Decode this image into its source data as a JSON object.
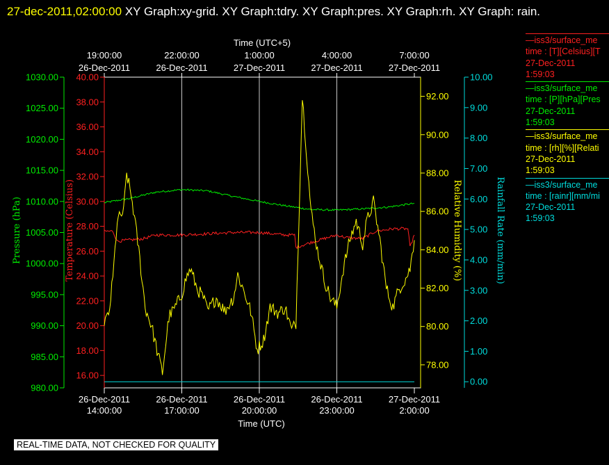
{
  "header": {
    "timestamp": "27-dec-2011,02:00:00",
    "graphs": "XY Graph:xy-grid.  XY Graph:tdry.  XY Graph:pres.  XY Graph:rh.  XY Graph: rain."
  },
  "legend": [
    {
      "line1": "—iss3/surface_me",
      "line2": "time : [T][Celsius][T",
      "line3": "27-Dec-2011",
      "line4": "1:59:03",
      "color": "#ff2020"
    },
    {
      "line1": "—iss3/surface_me",
      "line2": "time : [P][hPa][Pres",
      "line3": "27-Dec-2011",
      "line4": "1:59:03",
      "color": "#00ee00"
    },
    {
      "line1": "—iss3/surface_me",
      "line2": "time : [rh][%][Relati",
      "line3": "27-Dec-2011",
      "line4": "1:59:03",
      "color": "#ffff00"
    },
    {
      "line1": "—iss3/surface_me",
      "line2": "time : [rainr][mm/mi",
      "line3": "27-Dec-2011",
      "line4": "1:59:03",
      "color": "#00dddd"
    }
  ],
  "banner": "REAL-TIME DATA, NOT CHECKED FOR QUALITY",
  "chart_data": {
    "type": "line",
    "top_axis": {
      "title": "Time (UTC+5)",
      "ticks": [
        {
          "time": "19:00:00",
          "date": "26-Dec-2011"
        },
        {
          "time": "22:00:00",
          "date": "26-Dec-2011"
        },
        {
          "time": "1:00:00",
          "date": "27-Dec-2011"
        },
        {
          "time": "4:00:00",
          "date": "27-Dec-2011"
        },
        {
          "time": "7:00:00",
          "date": "27-Dec-2011"
        }
      ]
    },
    "bottom_axis": {
      "title": "Time (UTC)",
      "range": [
        "2011-12-26 14:00",
        "2011-12-27 02:00"
      ],
      "ticks": [
        {
          "date": "26-Dec-2011",
          "time": "14:00:00"
        },
        {
          "date": "26-Dec-2011",
          "time": "17:00:00"
        },
        {
          "date": "26-Dec-2011",
          "time": "20:00:00"
        },
        {
          "date": "26-Dec-2011",
          "time": "23:00:00"
        },
        {
          "date": "27-Dec-2011",
          "time": "2:00:00"
        }
      ]
    },
    "grid": "vertical",
    "axes": {
      "pressure": {
        "label": "Pressure (hPa)",
        "color": "#00ee00",
        "min": 980,
        "max": 1030,
        "ticks": [
          "1030.00",
          "1025.00",
          "1020.00",
          "1015.00",
          "1010.00",
          "1005.00",
          "1000.00",
          "995.00",
          "990.00",
          "985.00",
          "980.00"
        ]
      },
      "temperature": {
        "label": "Temperature (Celsius)",
        "color": "#ff2020",
        "min": 15,
        "max": 40,
        "ticks": [
          "40.00",
          "38.00",
          "36.00",
          "34.00",
          "32.00",
          "30.00",
          "28.00",
          "26.00",
          "24.00",
          "22.00",
          "20.00",
          "18.00",
          "16.00"
        ]
      },
      "humidity": {
        "label": "Relative Humidity (%)",
        "color": "#ffff00",
        "min": 76.8,
        "max": 93.0,
        "ticks": [
          "92.00",
          "90.00",
          "88.00",
          "86.00",
          "84.00",
          "82.00",
          "80.00",
          "78.00"
        ]
      },
      "rain": {
        "label": "Rainfall Rate (mm/min)",
        "color": "#00dddd",
        "min": -0.2,
        "max": 10,
        "ticks": [
          "10.00",
          "9.00",
          "8.00",
          "7.00",
          "6.00",
          "5.00",
          "4.00",
          "3.00",
          "2.00",
          "1.00",
          "0.00"
        ]
      }
    },
    "series": [
      {
        "name": "Pressure",
        "axis": "pressure",
        "color": "#00ee00",
        "noise": 0.15,
        "points": [
          [
            "2011-12-26 14:00",
            1009.8
          ],
          [
            "2011-12-26 15:00",
            1010.5
          ],
          [
            "2011-12-26 16:00",
            1011.5
          ],
          [
            "2011-12-26 17:00",
            1011.9
          ],
          [
            "2011-12-26 18:00",
            1011.7
          ],
          [
            "2011-12-26 19:00",
            1010.8
          ],
          [
            "2011-12-26 20:00",
            1010.0
          ],
          [
            "2011-12-26 21:00",
            1009.3
          ],
          [
            "2011-12-26 22:00",
            1008.7
          ],
          [
            "2011-12-26 23:00",
            1008.6
          ],
          [
            "2011-12-27 00:00",
            1008.8
          ],
          [
            "2011-12-27 01:00",
            1009.1
          ],
          [
            "2011-12-27 02:00",
            1009.7
          ]
        ]
      },
      {
        "name": "Temperature",
        "axis": "temperature",
        "color": "#ff2020",
        "noise": 0.12,
        "points": [
          [
            "2011-12-26 14:00",
            27.6
          ],
          [
            "2011-12-26 14:20",
            27.6
          ],
          [
            "2011-12-26 14:30",
            26.8
          ],
          [
            "2011-12-26 15:30",
            27.0
          ],
          [
            "2011-12-26 16:00",
            27.3
          ],
          [
            "2011-12-26 17:00",
            27.3
          ],
          [
            "2011-12-26 18:00",
            27.4
          ],
          [
            "2011-12-26 19:00",
            27.5
          ],
          [
            "2011-12-26 20:00",
            27.5
          ],
          [
            "2011-12-26 21:00",
            27.3
          ],
          [
            "2011-12-26 21:22",
            27.3
          ],
          [
            "2011-12-26 21:25",
            26.3
          ],
          [
            "2011-12-26 22:00",
            26.7
          ],
          [
            "2011-12-26 23:00",
            27.3
          ],
          [
            "2011-12-26 23:20",
            27.1
          ],
          [
            "2011-12-27 00:00",
            27.0
          ],
          [
            "2011-12-27 00:30",
            27.6
          ],
          [
            "2011-12-27 01:10",
            27.8
          ],
          [
            "2011-12-27 01:45",
            27.8
          ],
          [
            "2011-12-27 01:50",
            26.3
          ],
          [
            "2011-12-27 02:00",
            27.3
          ]
        ]
      },
      {
        "name": "Relative Humidity",
        "axis": "humidity",
        "color": "#ffff00",
        "noise": 0.35,
        "points": [
          [
            "2011-12-26 14:00",
            80.3
          ],
          [
            "2011-12-26 14:10",
            80.5
          ],
          [
            "2011-12-26 14:20",
            82.5
          ],
          [
            "2011-12-26 14:30",
            85.5
          ],
          [
            "2011-12-26 14:45",
            86.0
          ],
          [
            "2011-12-26 14:52",
            88.0
          ],
          [
            "2011-12-26 15:05",
            86.5
          ],
          [
            "2011-12-26 15:20",
            84.0
          ],
          [
            "2011-12-26 15:35",
            81.0
          ],
          [
            "2011-12-26 15:50",
            80.0
          ],
          [
            "2011-12-26 16:05",
            78.5
          ],
          [
            "2011-12-26 16:15",
            77.6
          ],
          [
            "2011-12-26 16:30",
            80.5
          ],
          [
            "2011-12-26 16:45",
            81.0
          ],
          [
            "2011-12-26 17:00",
            81.7
          ],
          [
            "2011-12-26 17:10",
            82.5
          ],
          [
            "2011-12-26 17:20",
            83.0
          ],
          [
            "2011-12-26 17:35",
            82.0
          ],
          [
            "2011-12-26 17:50",
            81.5
          ],
          [
            "2011-12-26 18:00",
            80.8
          ],
          [
            "2011-12-26 18:20",
            81.5
          ],
          [
            "2011-12-26 18:40",
            80.8
          ],
          [
            "2011-12-26 19:00",
            81.5
          ],
          [
            "2011-12-26 19:10",
            82.7
          ],
          [
            "2011-12-26 19:25",
            81.8
          ],
          [
            "2011-12-26 19:40",
            80.8
          ],
          [
            "2011-12-26 19:55",
            78.8
          ],
          [
            "2011-12-26 20:10",
            79.3
          ],
          [
            "2011-12-26 20:25",
            81.0
          ],
          [
            "2011-12-26 20:45",
            80.7
          ],
          [
            "2011-12-26 21:00",
            81.0
          ],
          [
            "2011-12-26 21:15",
            79.8
          ],
          [
            "2011-12-26 21:25",
            80.2
          ],
          [
            "2011-12-26 21:40",
            92.0
          ],
          [
            "2011-12-26 21:50",
            89.0
          ],
          [
            "2011-12-26 22:00",
            86.0
          ],
          [
            "2011-12-26 22:15",
            84.0
          ],
          [
            "2011-12-26 22:30",
            82.5
          ],
          [
            "2011-12-26 22:45",
            81.5
          ],
          [
            "2011-12-26 23:00",
            81.0
          ],
          [
            "2011-12-26 23:15",
            83.0
          ],
          [
            "2011-12-26 23:30",
            84.5
          ],
          [
            "2011-12-26 23:45",
            85.5
          ],
          [
            "2011-12-27 00:00",
            84.3
          ],
          [
            "2011-12-27 00:10",
            85.5
          ],
          [
            "2011-12-27 00:25",
            86.5
          ],
          [
            "2011-12-27 00:40",
            84.5
          ],
          [
            "2011-12-27 00:55",
            82.0
          ],
          [
            "2011-12-27 01:10",
            81.0
          ],
          [
            "2011-12-27 01:25",
            82.0
          ],
          [
            "2011-12-27 01:40",
            82.5
          ],
          [
            "2011-12-27 01:50",
            83.0
          ],
          [
            "2011-12-27 02:00",
            84.5
          ]
        ]
      },
      {
        "name": "Rainfall Rate",
        "axis": "rain",
        "color": "#00dddd",
        "noise": 0,
        "points": [
          [
            "2011-12-26 14:00",
            0.0
          ],
          [
            "2011-12-27 02:00",
            0.0
          ]
        ]
      }
    ]
  }
}
